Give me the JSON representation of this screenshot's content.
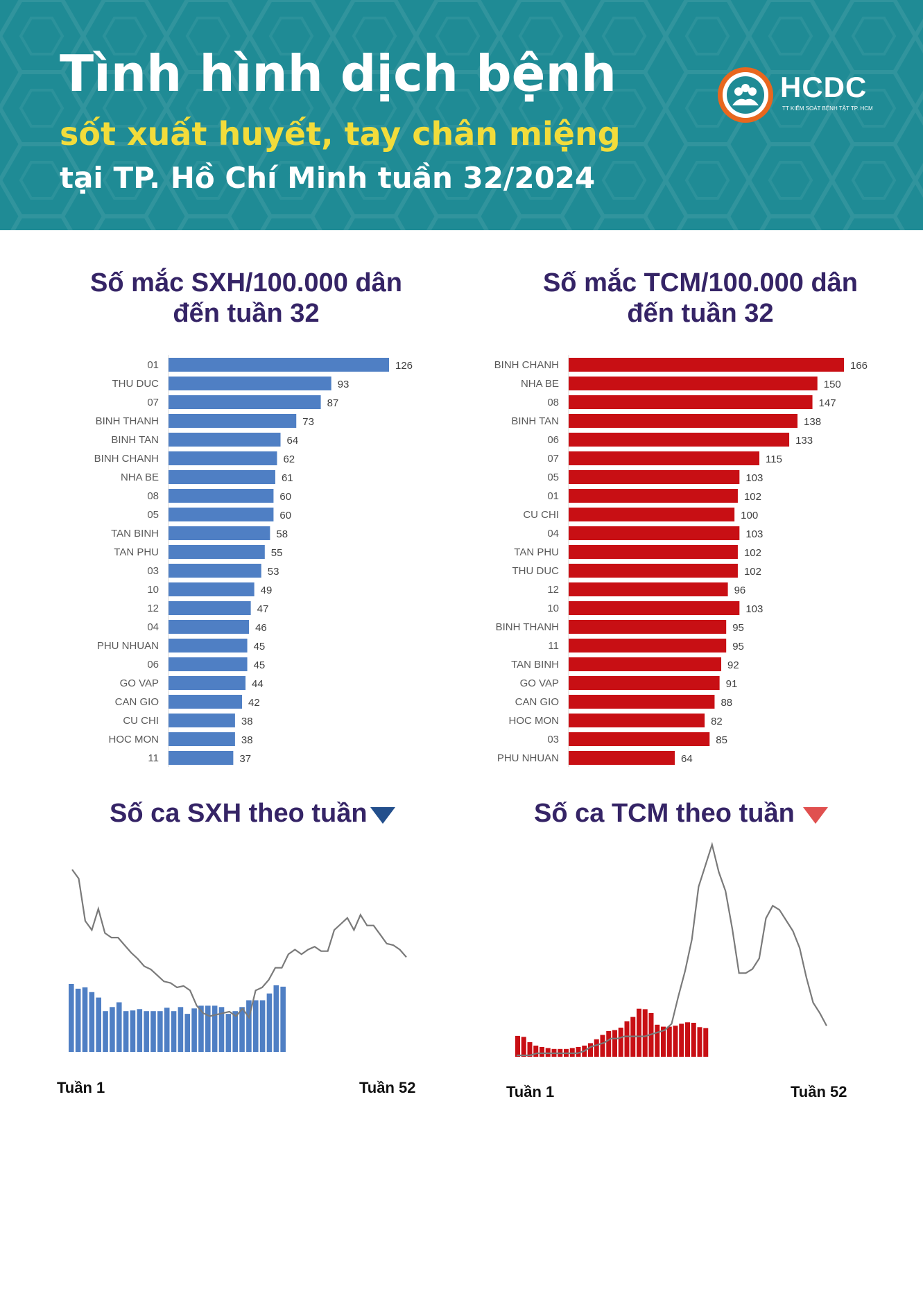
{
  "header": {
    "title": "Tình hình dịch bệnh",
    "subtitle": "sốt xuất huyết, tay chân miệng",
    "subtitle2": "tại TP. Hồ Chí Minh tuần 32/2024",
    "logo_text": "HCDC",
    "logo_sub": "TT KIỂM SOÁT BỆNH TẬT TP. HCM"
  },
  "colors": {
    "header_bg": "#1f8b95",
    "sxh": "#4f7fc4",
    "tcm": "#c80f14",
    "title": "#352466",
    "yellow": "#f2dc3b",
    "line": "#777777"
  },
  "chart_data": [
    {
      "id": "sxh-rate",
      "type": "bar",
      "orientation": "horizontal",
      "title": "Số mắc SXH/100.000 dân",
      "title_line2": "đến tuần 32",
      "categories": [
        "01",
        "THU DUC",
        "07",
        "BINH THANH",
        "BINH TAN",
        "BINH CHANH",
        "NHA BE",
        "08",
        "05",
        "TAN BINH",
        "TAN PHU",
        "03",
        "10",
        "12",
        "04",
        "PHU NHUAN",
        "06",
        "GO VAP",
        "CAN GIO",
        "CU CHI",
        "HOC MON",
        "11"
      ],
      "values": [
        126,
        93,
        87,
        73,
        64,
        62,
        61,
        60,
        60,
        58,
        55,
        53,
        49,
        47,
        46,
        45,
        45,
        44,
        42,
        38,
        38,
        37
      ],
      "color": "#4f7fc4"
    },
    {
      "id": "tcm-rate",
      "type": "bar",
      "orientation": "horizontal",
      "title": "Số mắc TCM/100.000 dân",
      "title_line2": "đến tuần 32",
      "categories": [
        "BINH CHANH",
        "NHA BE",
        "08",
        "BINH TAN",
        "06",
        "07",
        "05",
        "01",
        "CU CHI",
        "04",
        "TAN PHU",
        "THU DUC",
        "12",
        "10",
        "BINH THANH",
        "11",
        "TAN BINH",
        "GO VAP",
        "CAN GIO",
        "HOC MON",
        "03",
        "PHU NHUAN"
      ],
      "values": [
        166,
        150,
        147,
        138,
        133,
        115,
        103,
        102,
        100,
        103,
        102,
        102,
        96,
        103,
        95,
        95,
        92,
        91,
        88,
        82,
        85,
        64
      ],
      "color": "#c80f14"
    },
    {
      "id": "sxh-weekly",
      "type": "bar",
      "title": "Số ca SXH theo tuần",
      "x_start_label": "Tuần 1",
      "x_end_label": "Tuần 52",
      "bar_series_relative": [
        1.0,
        0.93,
        0.95,
        0.88,
        0.8,
        0.6,
        0.66,
        0.73,
        0.6,
        0.61,
        0.63,
        0.6,
        0.6,
        0.6,
        0.65,
        0.6,
        0.66,
        0.56,
        0.64,
        0.68,
        0.68,
        0.68,
        0.66,
        0.56,
        0.6,
        0.66,
        0.76,
        0.76,
        0.76,
        0.86,
        0.98,
        0.96
      ],
      "line_series_relative": [
        1.0,
        0.94,
        0.66,
        0.6,
        0.74,
        0.58,
        0.55,
        0.55,
        0.5,
        0.45,
        0.41,
        0.36,
        0.34,
        0.3,
        0.26,
        0.25,
        0.22,
        0.23,
        0.2,
        0.1,
        0.05,
        0.03,
        0.04,
        0.05,
        0.06,
        0.03,
        0.08,
        0.02,
        0.2,
        0.22,
        0.27,
        0.35,
        0.35,
        0.44,
        0.47,
        0.44,
        0.47,
        0.49,
        0.46,
        0.46,
        0.6,
        0.64,
        0.68,
        0.6,
        0.7,
        0.63,
        0.63,
        0.57,
        0.51,
        0.5,
        0.47,
        0.42
      ],
      "bar_color": "#4f7fc4",
      "marker": "down-triangle",
      "marker_color": "#234f8c"
    },
    {
      "id": "tcm-weekly",
      "type": "bar",
      "title": "Số ca TCM theo tuần",
      "x_start_label": "Tuần 1",
      "x_end_label": "Tuần 52",
      "bar_series_relative": [
        0.43,
        0.41,
        0.3,
        0.23,
        0.2,
        0.18,
        0.16,
        0.16,
        0.16,
        0.18,
        0.2,
        0.23,
        0.28,
        0.36,
        0.45,
        0.53,
        0.55,
        0.6,
        0.73,
        0.82,
        0.99,
        0.98,
        0.9,
        0.66,
        0.62,
        0.62,
        0.64,
        0.68,
        0.71,
        0.7,
        0.61,
        0.59
      ],
      "line_series_relative": [
        0.0,
        0.0,
        0.0,
        0.01,
        0.01,
        0.01,
        0.01,
        0.01,
        0.01,
        0.01,
        0.02,
        0.04,
        0.05,
        0.06,
        0.08,
        0.08,
        0.09,
        0.09,
        0.09,
        0.09,
        0.1,
        0.11,
        0.12,
        0.15,
        0.28,
        0.4,
        0.55,
        0.8,
        0.9,
        1.0,
        0.87,
        0.78,
        0.6,
        0.39,
        0.39,
        0.41,
        0.46,
        0.65,
        0.71,
        0.69,
        0.64,
        0.59,
        0.51,
        0.37,
        0.25,
        0.2,
        0.14
      ],
      "bar_color": "#c80f14",
      "marker": "down-triangle",
      "marker_color": "#e0504f"
    }
  ]
}
